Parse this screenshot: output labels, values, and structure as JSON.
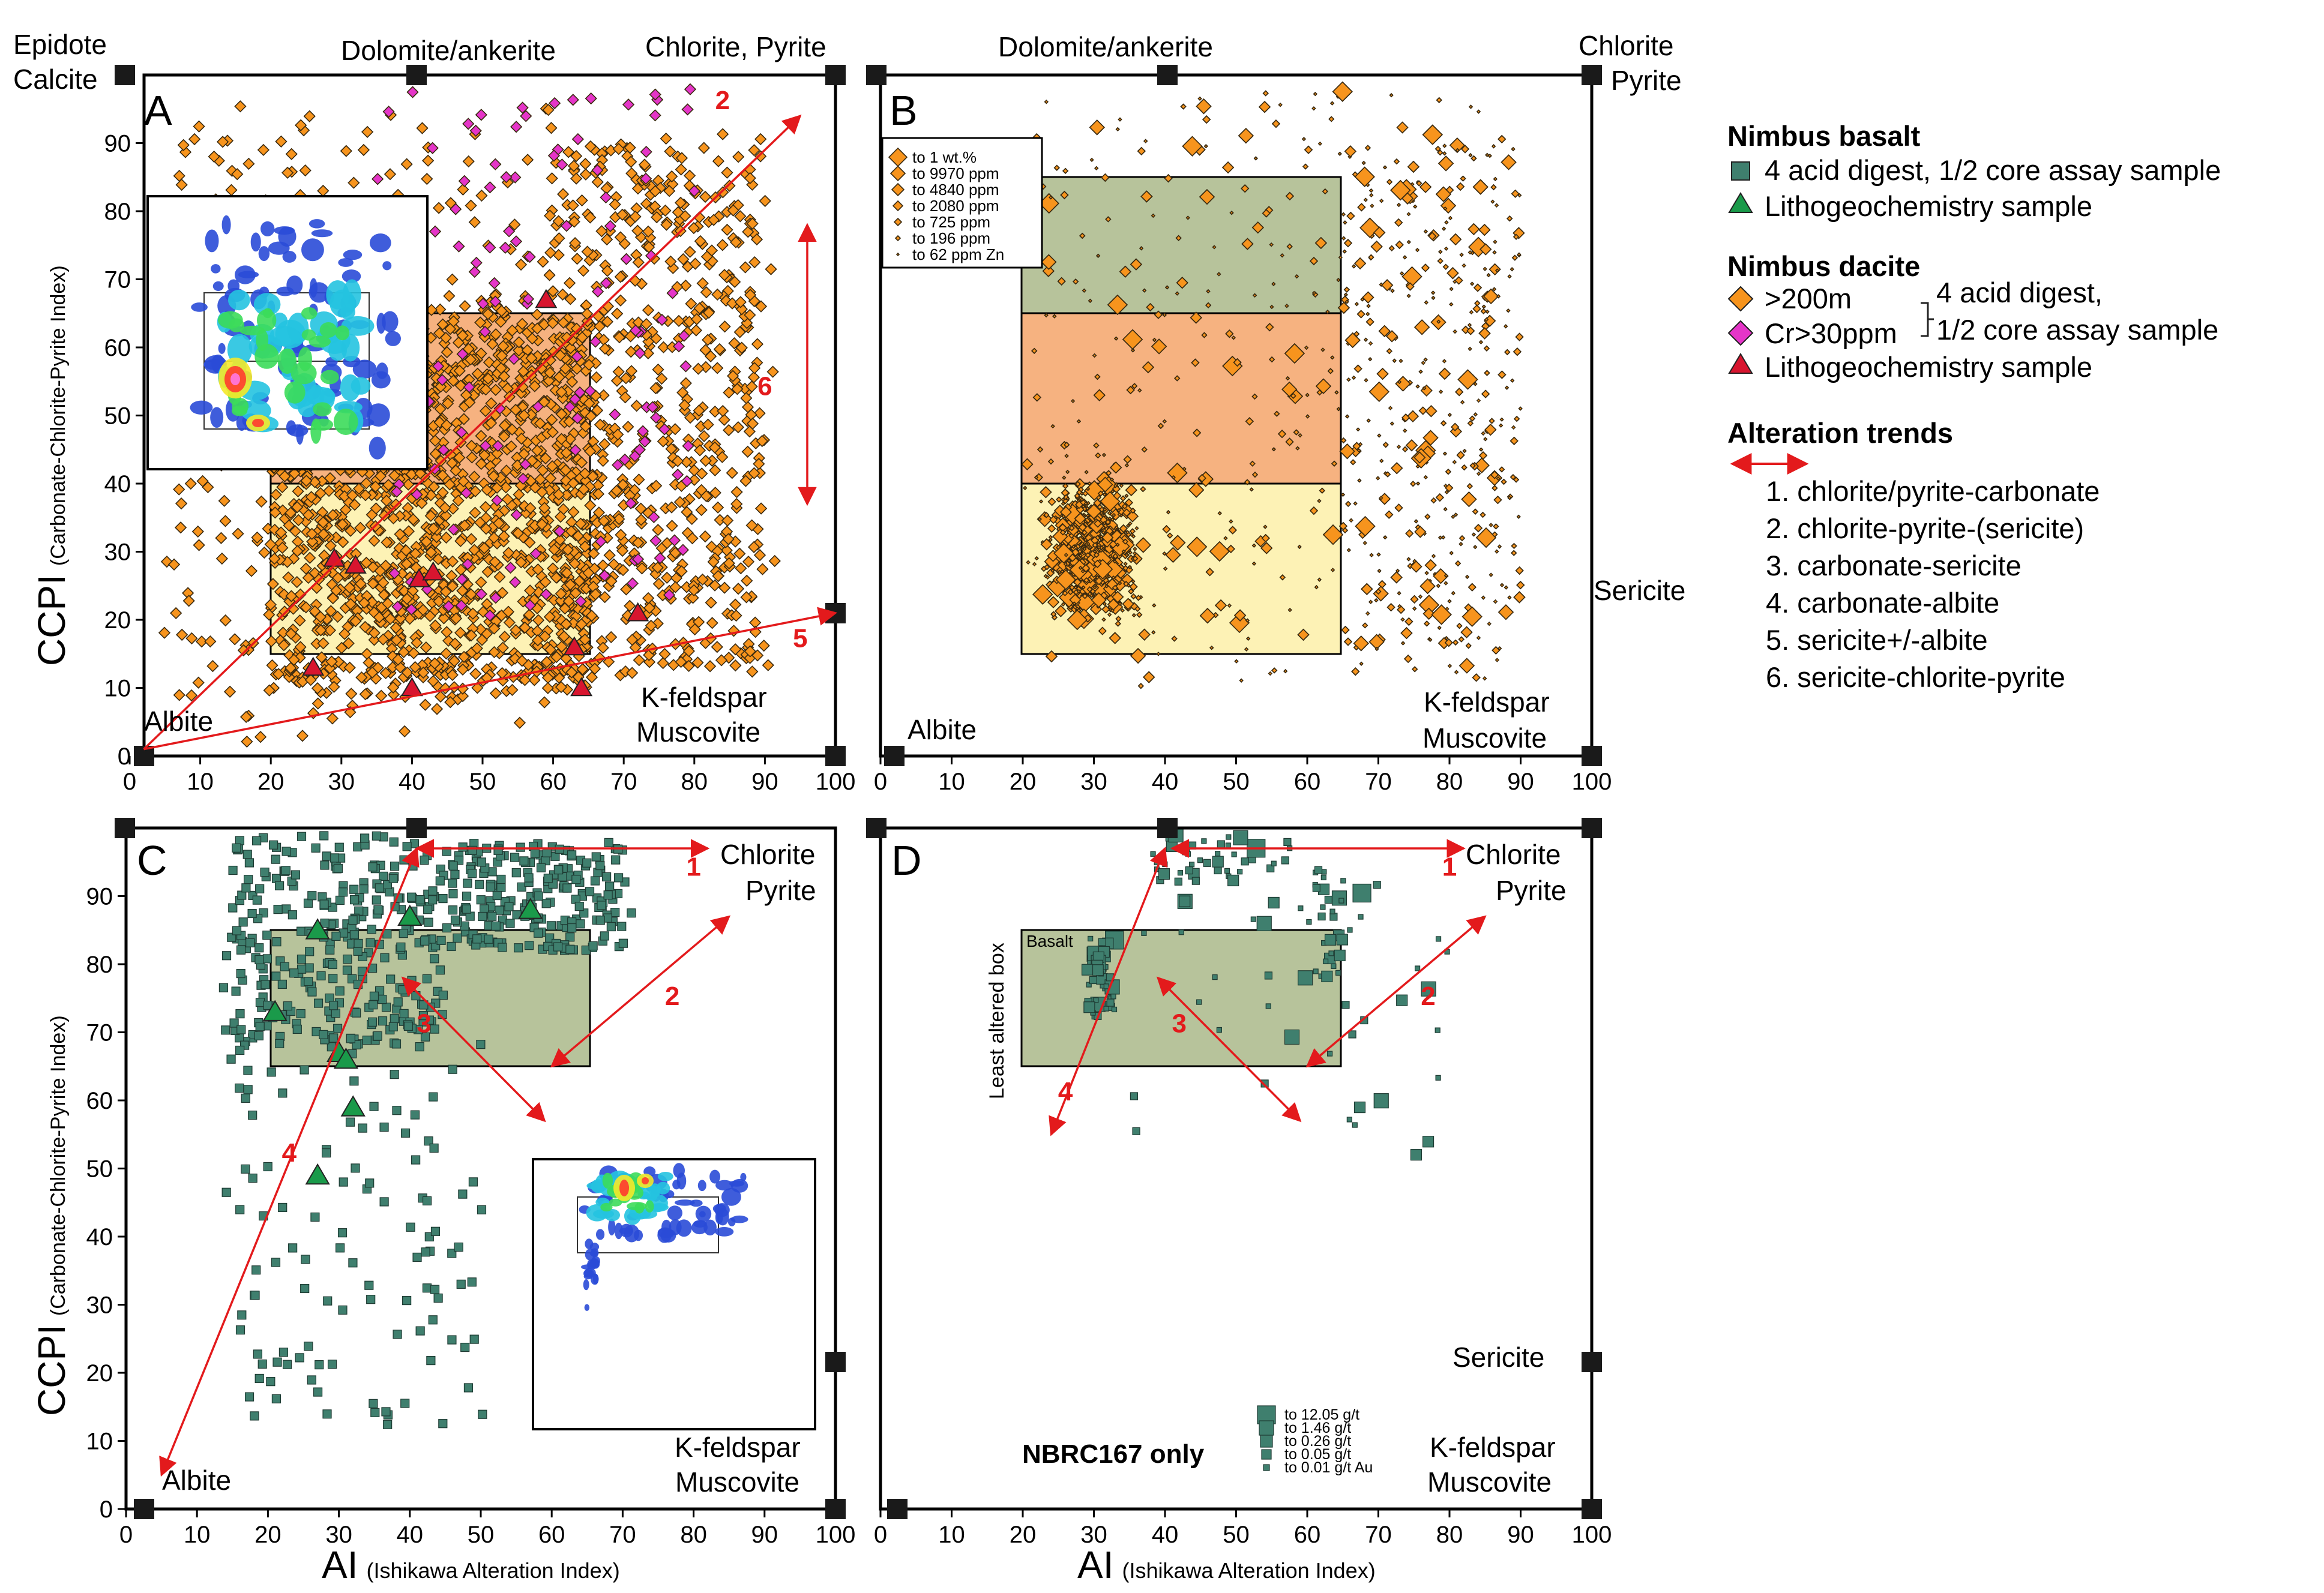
{
  "colors": {
    "dacite_fill": "#f7941d",
    "cr_fill": "#e535c8",
    "basalt_fill": "#3f7f6e",
    "litho_basalt": "#1a9a4a",
    "litho_dacite": "#d8152f",
    "trend": "#e31a1c",
    "box_orange": "#f4a46a",
    "box_yellow": "#fdf0a8",
    "box_green": "#aab889"
  },
  "axis": {
    "x_ticks": [
      "0",
      "10",
      "20",
      "30",
      "40",
      "50",
      "60",
      "70",
      "80",
      "90",
      "100"
    ],
    "y_ticks": [
      "0",
      "10",
      "20",
      "30",
      "40",
      "50",
      "60",
      "70",
      "80",
      "90"
    ],
    "y_label_main": "CCPI",
    "y_label_sub": "(Carbonate-Chlorite-Pyrite Index)",
    "x_label_main": "AI",
    "x_label_sub": "(Ishikawa Alteration Index)"
  },
  "chart_data": [
    {
      "type": "scatter",
      "panel": "A",
      "xlim": [
        0,
        100
      ],
      "ylim": [
        0,
        100
      ],
      "corner_labels": {
        "top_left": "Epidote Calcite",
        "top_mid": "Dolomite/ankerite",
        "top_right": "Chlorite, Pyrite",
        "bottom_left": "Albite",
        "bottom_right": "K-feldspar Muscovite"
      },
      "series": [
        {
          "name": ">200m",
          "marker": "diamond",
          "count_approx": 2500
        },
        {
          "name": "Cr>30ppm",
          "marker": "diamond",
          "count_approx": 150
        },
        {
          "name": "Lithogeochemistry sample (dacite)",
          "marker": "triangle",
          "points": [
            [
              26,
              13
            ],
            [
              29,
              29
            ],
            [
              32,
              28
            ],
            [
              40,
              10
            ],
            [
              41,
              26
            ],
            [
              43,
              27
            ],
            [
              59,
              67
            ],
            [
              63,
              16
            ],
            [
              64,
              10
            ],
            [
              72,
              21
            ]
          ]
        }
      ],
      "boxes": [
        {
          "name": "orange box",
          "x": [
            20,
            65
          ],
          "y": [
            40,
            65
          ]
        },
        {
          "name": "yellow box",
          "x": [
            20,
            65
          ],
          "y": [
            15,
            40
          ]
        }
      ],
      "trends": [
        {
          "label": "2",
          "from": [
            2,
            1
          ],
          "to": [
            95,
            94
          ]
        },
        {
          "label": "5",
          "from": [
            2,
            1
          ],
          "to": [
            100,
            21
          ]
        },
        {
          "label": "6",
          "from": [
            96,
            37
          ],
          "to": [
            96,
            78
          ]
        }
      ]
    },
    {
      "type": "scatter",
      "panel": "B",
      "xlim": [
        0,
        100
      ],
      "ylim": [
        0,
        100
      ],
      "corner_labels": {
        "top_mid": "Dolomite/ankerite",
        "top_right": "Chlorite Pyrite",
        "right_mid": "Sericite",
        "bottom_left": "Albite",
        "bottom_right": "K-feldspar Muscovite"
      },
      "size_legend": [
        "to 1 wt.%",
        "to 9970 ppm",
        "to 4840 ppm",
        "to 2080 ppm",
        "to 725 ppm",
        "to 196 ppm",
        "to 62 ppm Zn"
      ],
      "boxes": [
        {
          "name": "green box",
          "x": [
            20,
            65
          ],
          "y": [
            65,
            85
          ]
        },
        {
          "name": "orange box",
          "x": [
            20,
            65
          ],
          "y": [
            40,
            65
          ]
        },
        {
          "name": "yellow box",
          "x": [
            20,
            65
          ],
          "y": [
            15,
            40
          ]
        }
      ]
    },
    {
      "type": "scatter",
      "panel": "C",
      "xlim": [
        0,
        100
      ],
      "ylim": [
        0,
        100
      ],
      "corner_labels": {
        "top_right": "Chlorite Pyrite",
        "bottom_left": "Albite",
        "bottom_right": "K-feldspar Muscovite"
      },
      "series": [
        {
          "name": "4 acid digest, 1/2 core assay sample (basalt)",
          "marker": "square",
          "count_approx": 600
        },
        {
          "name": "Lithogeochemistry sample (basalt)",
          "marker": "triangle",
          "points": [
            [
              21,
              73
            ],
            [
              27,
              85
            ],
            [
              30,
              67
            ],
            [
              31,
              66
            ],
            [
              32,
              59
            ],
            [
              27,
              49
            ],
            [
              40,
              87
            ],
            [
              57,
              88
            ]
          ]
        }
      ],
      "boxes": [
        {
          "name": "green box",
          "x": [
            20,
            65
          ],
          "y": [
            65,
            85
          ]
        }
      ],
      "trends": [
        {
          "label": "1",
          "from": [
            41,
            97
          ],
          "to": [
            82,
            97
          ]
        },
        {
          "label": "2",
          "from": [
            60,
            65
          ],
          "to": [
            85,
            87
          ]
        },
        {
          "label": "3",
          "from": [
            39,
            78
          ],
          "to": [
            59,
            57
          ]
        },
        {
          "label": "4",
          "from": [
            5,
            5
          ],
          "to": [
            41,
            97
          ]
        }
      ]
    },
    {
      "type": "scatter",
      "panel": "D",
      "xlim": [
        0,
        100
      ],
      "ylim": [
        0,
        100
      ],
      "corner_labels": {
        "top_right": "Chlorite Pyrite",
        "right_mid": "Sericite",
        "bottom_right": "K-feldspar Muscovite"
      },
      "box_label": "Basalt",
      "side_label": "Least altered box",
      "note": "NBRC167 only",
      "size_legend": [
        "to 12.05 g/t",
        "to 1.46 g/t",
        "to 0.26 g/t",
        "to 0.05 g/t",
        "to 0.01 g/t Au"
      ],
      "boxes": [
        {
          "name": "green box",
          "x": [
            20,
            65
          ],
          "y": [
            65,
            85
          ]
        }
      ],
      "trends": [
        {
          "label": "1",
          "from": [
            41,
            97
          ],
          "to": [
            82,
            97
          ]
        },
        {
          "label": "2",
          "from": [
            60,
            65
          ],
          "to": [
            85,
            87
          ]
        },
        {
          "label": "3",
          "from": [
            39,
            78
          ],
          "to": [
            59,
            57
          ]
        },
        {
          "label": "4",
          "from": [
            24,
            55
          ],
          "to": [
            40,
            97
          ]
        }
      ]
    }
  ],
  "legend": {
    "basalt_title": "Nimbus basalt",
    "basalt_assay": "4 acid digest, 1/2 core assay sample",
    "basalt_litho": "Lithogeochemistry sample",
    "dacite_title": "Nimbus dacite",
    "dacite_200": ">200m",
    "dacite_cr": "Cr>30ppm",
    "dacite_assay_1": "4 acid digest,",
    "dacite_assay_2": "1/2 core assay sample",
    "dacite_litho": "Lithogeochemistry sample",
    "trends_title": "Alteration trends",
    "trends": [
      "1. chlorite/pyrite-carbonate",
      "2. chlorite-pyrite-(sericite)",
      "3. carbonate-sericite",
      "4. carbonate-albite",
      "5. sericite+/-albite",
      "6. sericite-chlorite-pyrite"
    ]
  }
}
